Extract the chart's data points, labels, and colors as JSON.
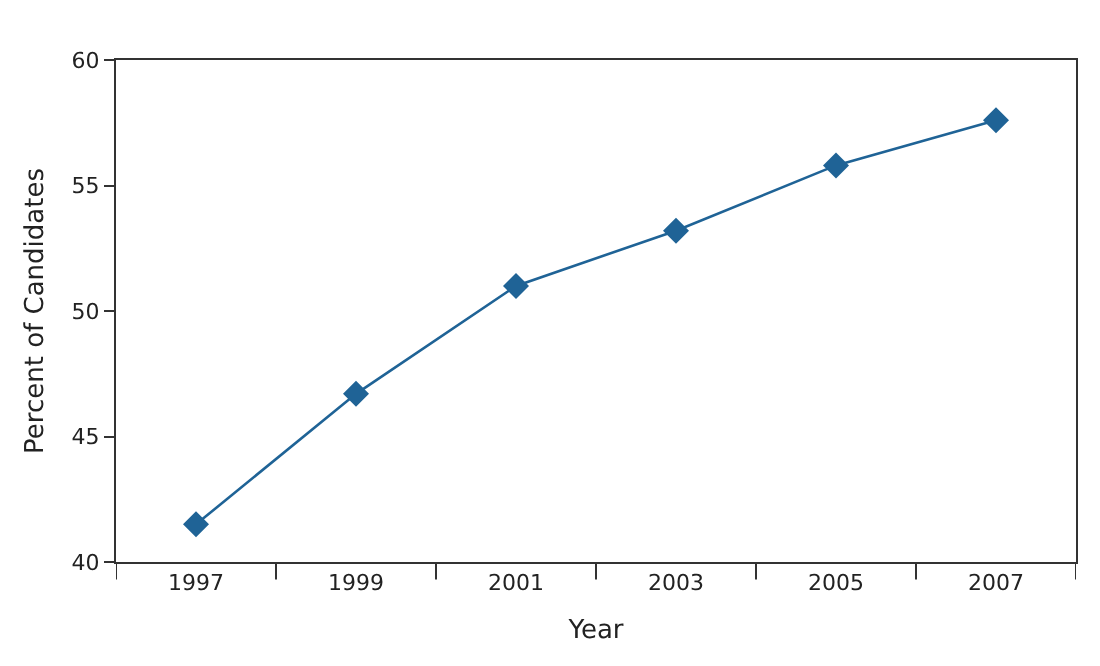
{
  "chart_data": {
    "type": "line",
    "xlabel": "Year",
    "ylabel": "Percent of Candidates",
    "categories": [
      "1997",
      "1999",
      "2001",
      "2003",
      "2005",
      "2007"
    ],
    "series": [
      {
        "color": "#1f6396",
        "values": [
          41.5,
          46.7,
          51.0,
          53.2,
          55.8,
          57.6
        ]
      }
    ],
    "ylim": [
      40,
      60
    ],
    "yticks": [
      40,
      45,
      50,
      55,
      60
    ],
    "grid": false,
    "marker": "diamond",
    "line_style": "solid"
  }
}
